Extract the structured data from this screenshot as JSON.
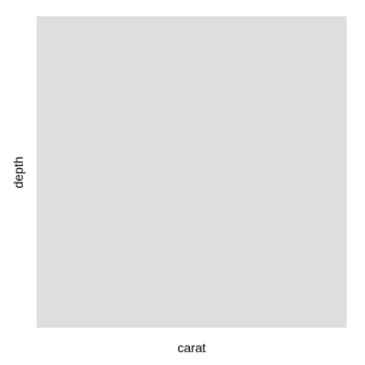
{
  "chart_data": {
    "type": "scatter",
    "title": "",
    "xlabel": "carat",
    "ylabel": "depth",
    "series": [],
    "x": [],
    "y": [],
    "grid": false,
    "legend": "none",
    "panel_background": "#dedede",
    "page_background": "#ffffff"
  }
}
